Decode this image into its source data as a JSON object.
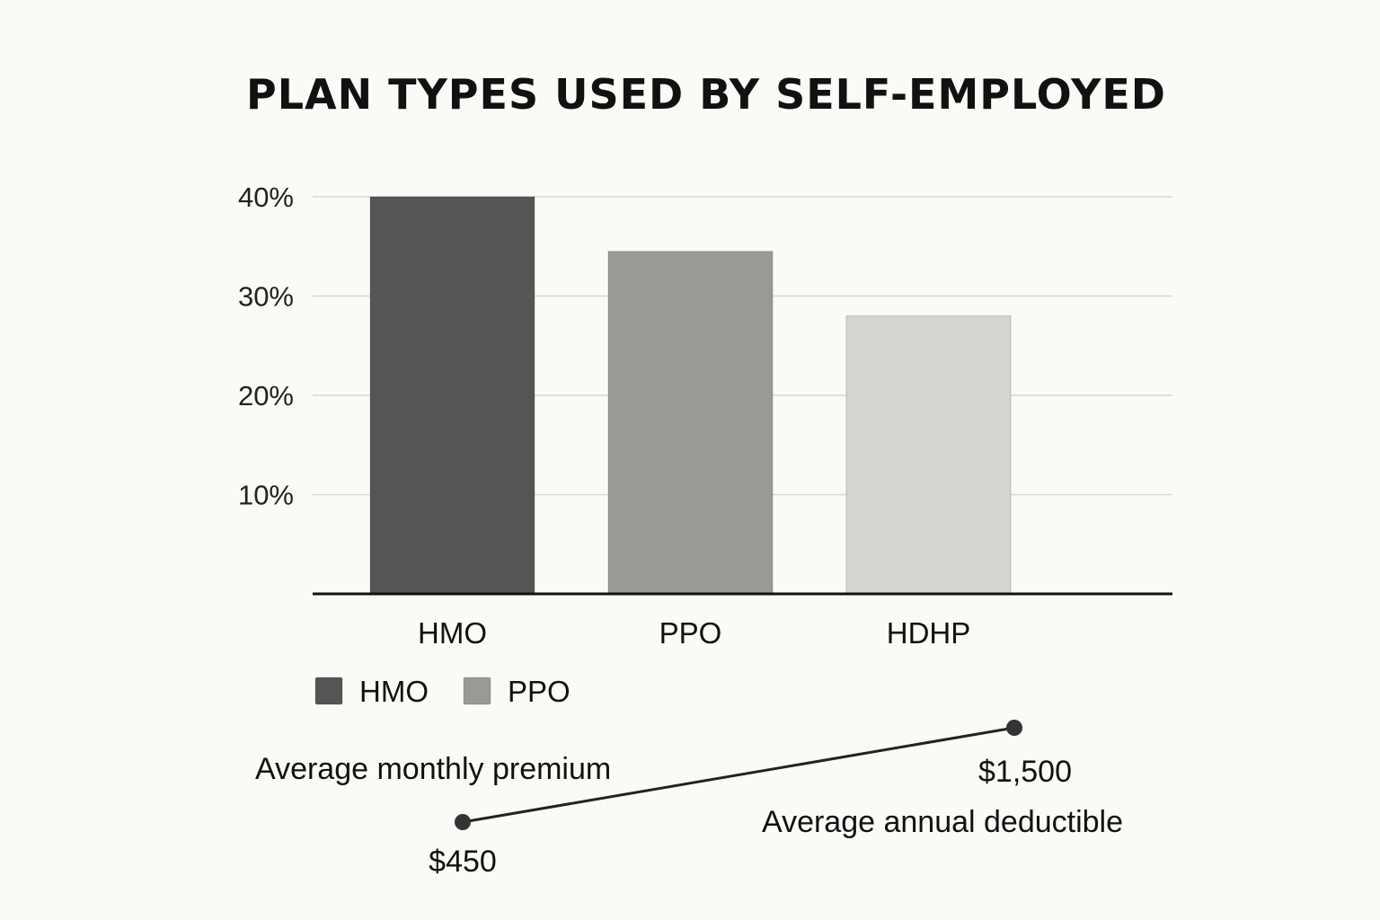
{
  "chart_data": {
    "type": "bar",
    "title": "PLAN TYPES USED BY SELF-EMPLOYED",
    "categories": [
      "HMO",
      "PPO",
      "HDHP"
    ],
    "values": [
      40,
      34.5,
      28
    ],
    "unit": "%",
    "ylim": [
      0,
      40
    ],
    "yticks": [
      "10%",
      "20%",
      "30%",
      "40%"
    ],
    "grid": true,
    "colors": [
      "#555555",
      "#9a9995",
      "#d6d5d0"
    ],
    "legend": {
      "placement": "bottom-left",
      "entries": [
        {
          "label": "HMO",
          "color": "#555555"
        },
        {
          "label": "PPO",
          "color": "#9a9995"
        }
      ]
    },
    "annotation": {
      "line_color": "#222222",
      "points": [
        {
          "value": "$450",
          "caption": "Average monthly premium"
        },
        {
          "value": "$1,500",
          "caption": "Average annual deductible"
        }
      ]
    }
  }
}
